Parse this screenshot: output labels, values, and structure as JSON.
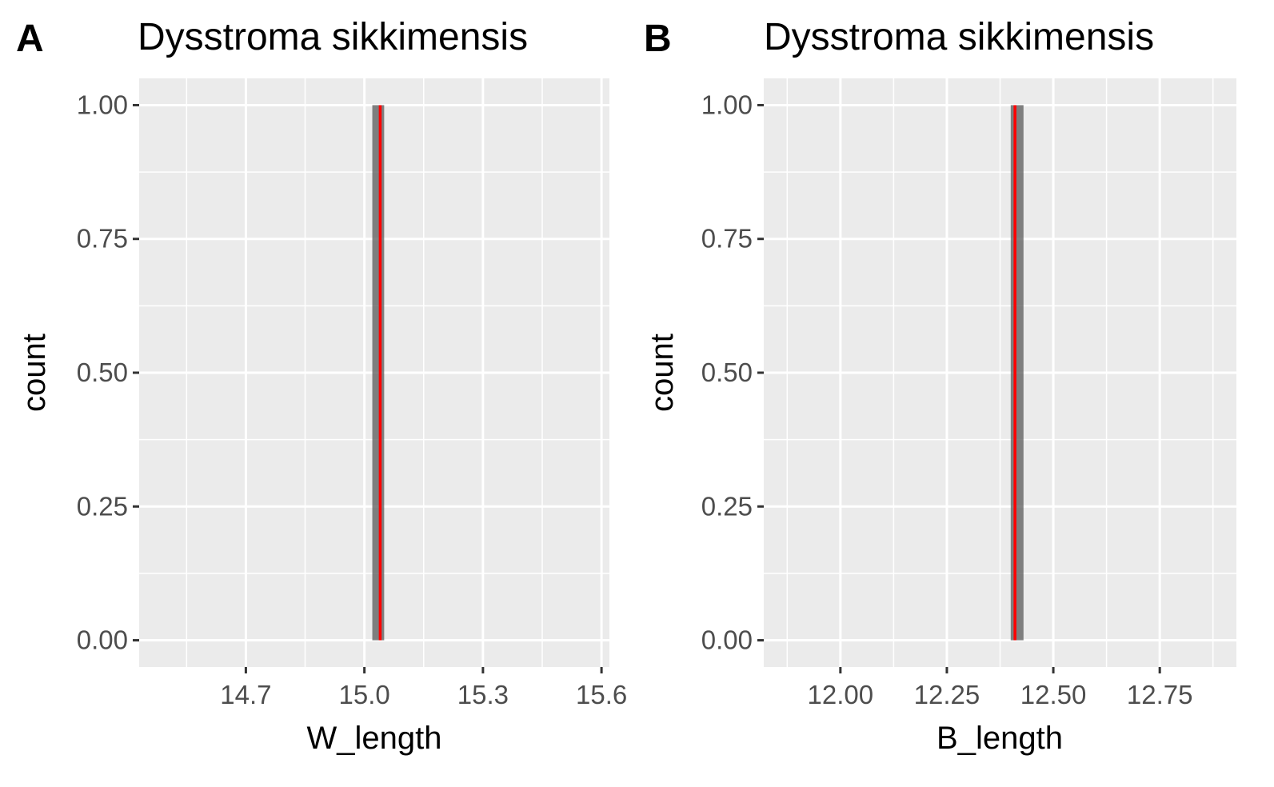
{
  "chart_data": [
    {
      "panel": "A",
      "type": "bar",
      "title": "Dysstroma sikkimensis",
      "xlabel": "W_length",
      "ylabel": "count",
      "xlim": [
        14.43,
        15.62
      ],
      "ylim": [
        -0.05,
        1.05
      ],
      "x_ticks": [
        {
          "value": 14.7,
          "label": "14.7"
        },
        {
          "value": 15.0,
          "label": "15.0"
        },
        {
          "value": 15.3,
          "label": "15.3"
        },
        {
          "value": 15.6,
          "label": "15.6"
        }
      ],
      "y_ticks": [
        {
          "value": 0.0,
          "label": "0.00"
        },
        {
          "value": 0.25,
          "label": "0.25"
        },
        {
          "value": 0.5,
          "label": "0.50"
        },
        {
          "value": 0.75,
          "label": "0.75"
        },
        {
          "value": 1.0,
          "label": "1.00"
        }
      ],
      "bars": [
        {
          "xmin": 15.02,
          "xmax": 15.05,
          "count": 1
        }
      ],
      "vline": {
        "x": 15.04,
        "color": "#ff0000"
      },
      "grid": true,
      "colors": {
        "panel_bg": "#ebebeb",
        "grid": "#ffffff",
        "bar": "#595959"
      }
    },
    {
      "panel": "B",
      "type": "bar",
      "title": "Dysstroma sikkimensis",
      "xlabel": "B_length",
      "ylabel": "count",
      "xlim": [
        11.82,
        12.93
      ],
      "ylim": [
        -0.05,
        1.05
      ],
      "x_ticks": [
        {
          "value": 12.0,
          "label": "12.00"
        },
        {
          "value": 12.25,
          "label": "12.25"
        },
        {
          "value": 12.5,
          "label": "12.50"
        },
        {
          "value": 12.75,
          "label": "12.75"
        }
      ],
      "y_ticks": [
        {
          "value": 0.0,
          "label": "0.00"
        },
        {
          "value": 0.25,
          "label": "0.25"
        },
        {
          "value": 0.5,
          "label": "0.50"
        },
        {
          "value": 0.75,
          "label": "0.75"
        },
        {
          "value": 1.0,
          "label": "1.00"
        }
      ],
      "bars": [
        {
          "xmin": 12.4,
          "xmax": 12.43,
          "count": 1
        }
      ],
      "vline": {
        "x": 12.41,
        "color": "#ff0000"
      },
      "grid": true,
      "colors": {
        "panel_bg": "#ebebeb",
        "grid": "#ffffff",
        "bar": "#595959"
      }
    }
  ]
}
